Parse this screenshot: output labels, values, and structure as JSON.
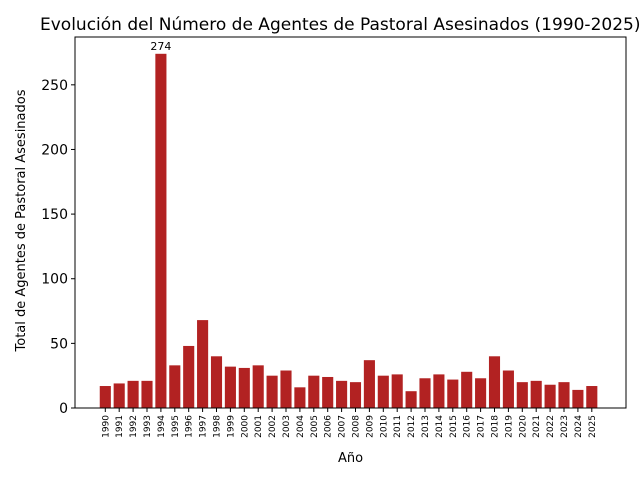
{
  "chart_data": {
    "type": "bar",
    "title": "Evolución del Número de Agentes de Pastoral Asesinados (1990-2025)",
    "xlabel": "Año",
    "ylabel": "Total de Agentes de Pastoral Asesinados",
    "categories": [
      "1990",
      "1991",
      "1992",
      "1993",
      "1994",
      "1995",
      "1996",
      "1997",
      "1998",
      "1999",
      "2000",
      "2001",
      "2002",
      "2003",
      "2004",
      "2005",
      "2006",
      "2007",
      "2008",
      "2009",
      "2010",
      "2011",
      "2012",
      "2013",
      "2014",
      "2015",
      "2016",
      "2017",
      "2018",
      "2019",
      "2020",
      "2021",
      "2022",
      "2023",
      "2024",
      "2025"
    ],
    "values": [
      17,
      19,
      21,
      21,
      274,
      33,
      48,
      68,
      40,
      32,
      31,
      33,
      25,
      29,
      16,
      25,
      24,
      21,
      20,
      37,
      25,
      26,
      13,
      23,
      26,
      22,
      28,
      23,
      40,
      29,
      20,
      21,
      18,
      20,
      14,
      17
    ],
    "ylim": [
      0,
      287
    ],
    "yticks": [
      0,
      50,
      100,
      150,
      200,
      250
    ],
    "annotations": [
      {
        "category": "1994",
        "text": "274"
      }
    ],
    "bar_color": "#b22222",
    "grid": false,
    "legend": "none"
  }
}
